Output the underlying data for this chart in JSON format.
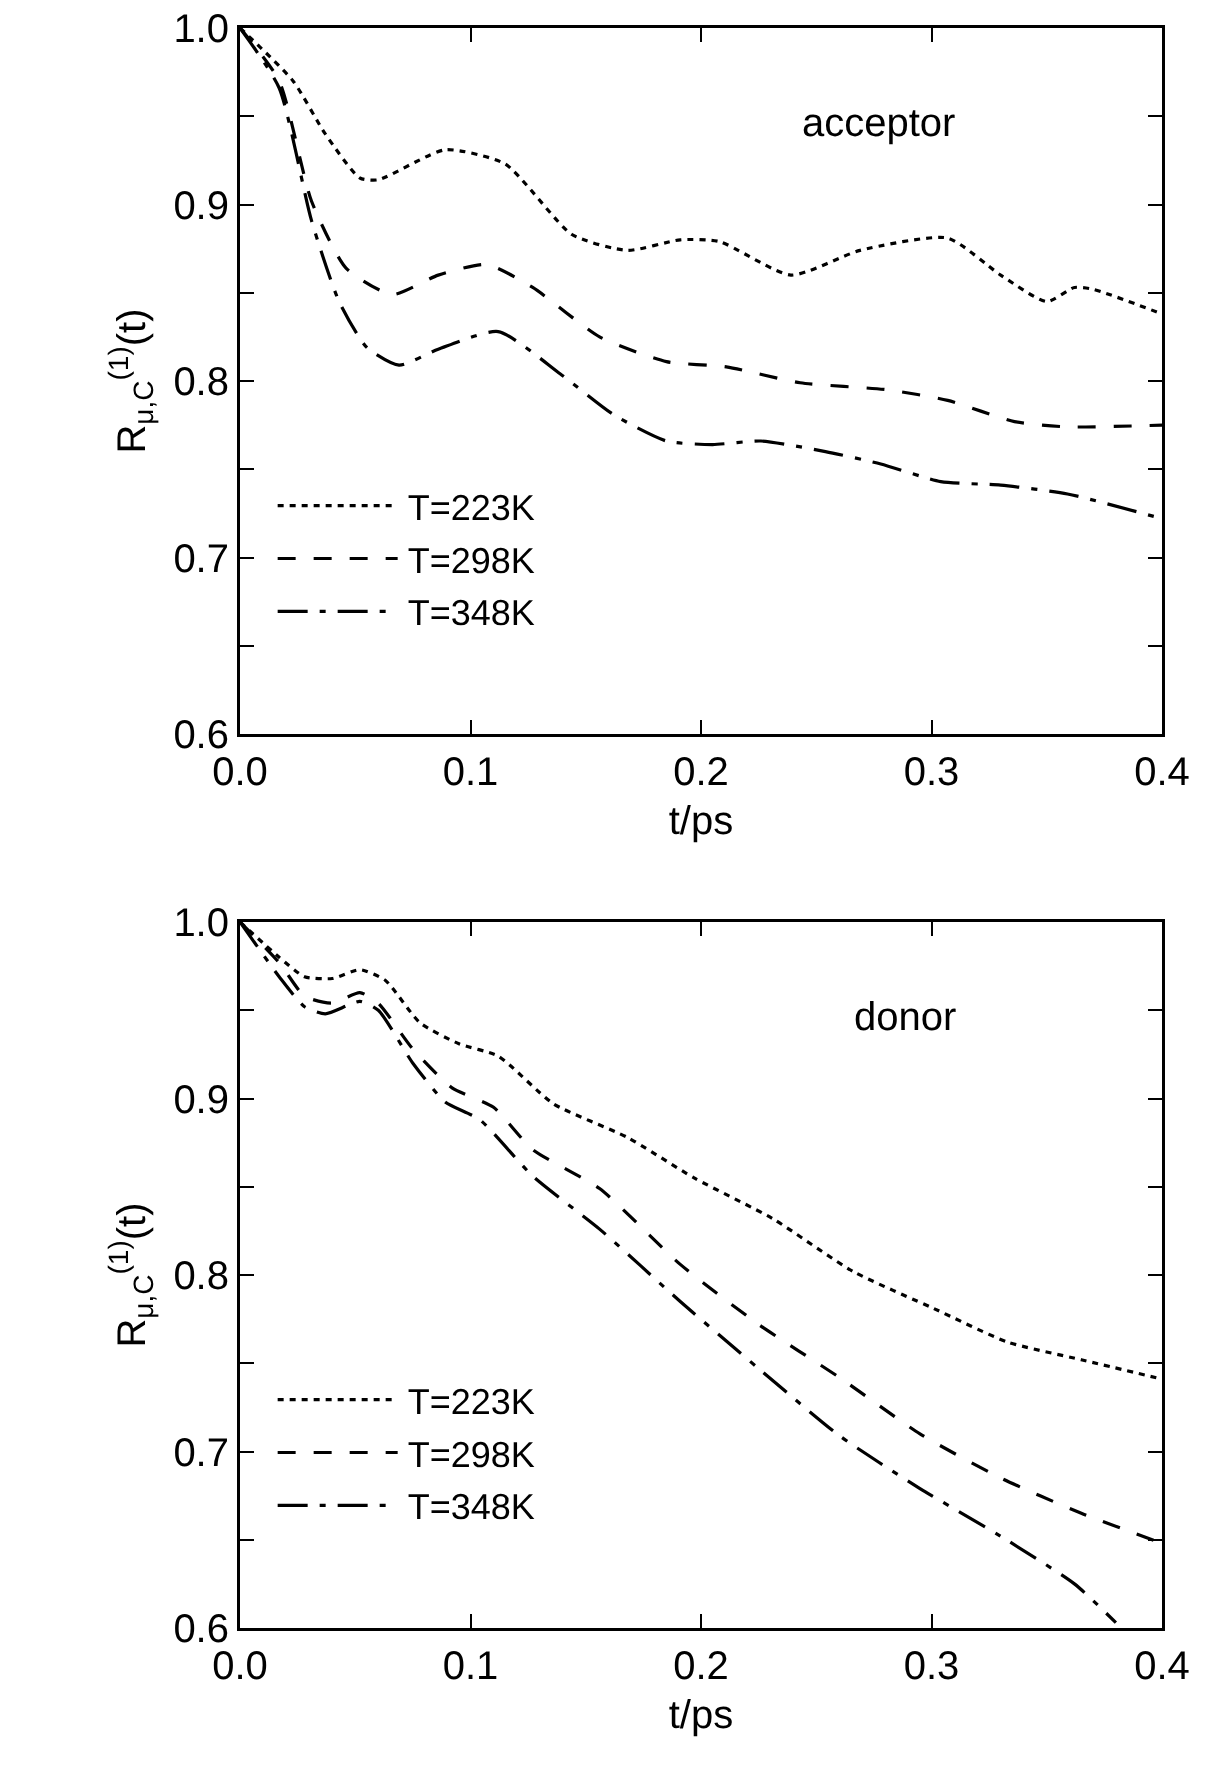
{
  "chart_data": [
    {
      "type": "line",
      "xlabel": "t/ps",
      "ylabel": "R$_{μ,C}$$^{(1)}$(t)",
      "annotations": [
        "acceptor"
      ],
      "legend": "bottom left",
      "grid": false,
      "marker": "none",
      "xlim": [
        0,
        0.4
      ],
      "xticks": [
        {
          "value": 0,
          "label": "0.0"
        },
        0.1,
        0.2,
        0.3,
        0.4
      ],
      "ylim": [
        0.6,
        1.0
      ],
      "yticks": [
        0.6,
        {
          "value": 0.65,
          "label": null
        },
        0.7,
        {
          "value": 0.75,
          "label": null
        },
        0.8,
        {
          "value": 0.85,
          "label": null
        },
        0.9,
        {
          "value": 0.95,
          "label": null
        },
        {
          "value": 1.0,
          "label": "1.0"
        }
      ],
      "series": [
        {
          "name": "T=223K",
          "color": "#000000",
          "line_style": "dotted",
          "x": [
            0,
            0.023,
            0.037,
            0.052,
            0.06,
            0.089,
            0.115,
            0.144,
            0.168,
            0.191,
            0.208,
            0.239,
            0.269,
            0.307,
            0.33,
            0.35,
            0.362,
            0.37,
            0.4
          ],
          "values": [
            1.0,
            0.97,
            0.94,
            0.915,
            0.914,
            0.931,
            0.923,
            0.883,
            0.874,
            0.88,
            0.879,
            0.86,
            0.874,
            0.881,
            0.86,
            0.845,
            0.853,
            0.852,
            0.838
          ]
        },
        {
          "name": "T=298K",
          "color": "#000000",
          "line_style": "dashed",
          "x": [
            0,
            0.017,
            0.031,
            0.046,
            0.066,
            0.086,
            0.107,
            0.127,
            0.156,
            0.185,
            0.211,
            0.243,
            0.281,
            0.307,
            0.336,
            0.359,
            0.4
          ],
          "values": [
            1.0,
            0.97,
            0.902,
            0.864,
            0.849,
            0.86,
            0.866,
            0.853,
            0.825,
            0.811,
            0.808,
            0.799,
            0.795,
            0.789,
            0.777,
            0.774,
            0.775
          ]
        },
        {
          "name": "T=348K",
          "color": "#000000",
          "line_style": "dashdot",
          "x": [
            0,
            0.017,
            0.031,
            0.043,
            0.055,
            0.069,
            0.086,
            0.112,
            0.139,
            0.162,
            0.185,
            0.205,
            0.226,
            0.254,
            0.278,
            0.304,
            0.33,
            0.359,
            0.4
          ],
          "values": [
            1.0,
            0.966,
            0.891,
            0.845,
            0.819,
            0.809,
            0.818,
            0.828,
            0.804,
            0.781,
            0.766,
            0.764,
            0.766,
            0.76,
            0.753,
            0.743,
            0.741,
            0.736,
            0.722
          ]
        }
      ]
    },
    {
      "type": "line",
      "xlabel": "t/ps",
      "ylabel": "R$_{μ,C}$$^{(1)}$(t)",
      "annotations": [
        "donor"
      ],
      "legend": "bottom left",
      "grid": false,
      "marker": "none",
      "xlim": [
        0,
        0.4
      ],
      "xticks": [
        {
          "value": 0,
          "label": "0.0"
        },
        0.1,
        0.2,
        0.3,
        0.4
      ],
      "ylim": [
        0.6,
        1.0
      ],
      "yticks": [
        0.6,
        {
          "value": 0.65,
          "label": null
        },
        0.7,
        {
          "value": 0.75,
          "label": null
        },
        0.8,
        {
          "value": 0.85,
          "label": null
        },
        0.9,
        {
          "value": 0.95,
          "label": null
        },
        {
          "value": 1.0,
          "label": "1.0"
        }
      ],
      "series": [
        {
          "name": "T=223K",
          "color": "#000000",
          "line_style": "dotted",
          "x": [
            0,
            0.017,
            0.028,
            0.04,
            0.052,
            0.063,
            0.078,
            0.095,
            0.112,
            0.136,
            0.168,
            0.197,
            0.231,
            0.266,
            0.301,
            0.333,
            0.365,
            0.4
          ],
          "values": [
            1.0,
            0.98,
            0.969,
            0.968,
            0.973,
            0.967,
            0.943,
            0.931,
            0.924,
            0.897,
            0.878,
            0.855,
            0.832,
            0.802,
            0.781,
            0.762,
            0.752,
            0.741
          ]
        },
        {
          "name": "T=298K",
          "color": "#000000",
          "line_style": "dashed",
          "x": [
            0,
            0.017,
            0.028,
            0.04,
            0.052,
            0.06,
            0.075,
            0.092,
            0.11,
            0.127,
            0.156,
            0.191,
            0.225,
            0.26,
            0.295,
            0.33,
            0.365,
            0.4
          ],
          "values": [
            1.0,
            0.977,
            0.958,
            0.954,
            0.96,
            0.954,
            0.928,
            0.906,
            0.895,
            0.871,
            0.849,
            0.806,
            0.772,
            0.742,
            0.71,
            0.685,
            0.665,
            0.648
          ]
        },
        {
          "name": "T=348K",
          "color": "#000000",
          "line_style": "dashdot",
          "x": [
            0,
            0.017,
            0.028,
            0.037,
            0.052,
            0.06,
            0.075,
            0.089,
            0.104,
            0.127,
            0.156,
            0.191,
            0.225,
            0.26,
            0.295,
            0.33,
            0.362,
            0.38
          ],
          "values": [
            1.0,
            0.969,
            0.952,
            0.948,
            0.955,
            0.95,
            0.92,
            0.898,
            0.888,
            0.856,
            0.826,
            0.785,
            0.747,
            0.709,
            0.679,
            0.652,
            0.625,
            0.603
          ]
        }
      ]
    }
  ]
}
